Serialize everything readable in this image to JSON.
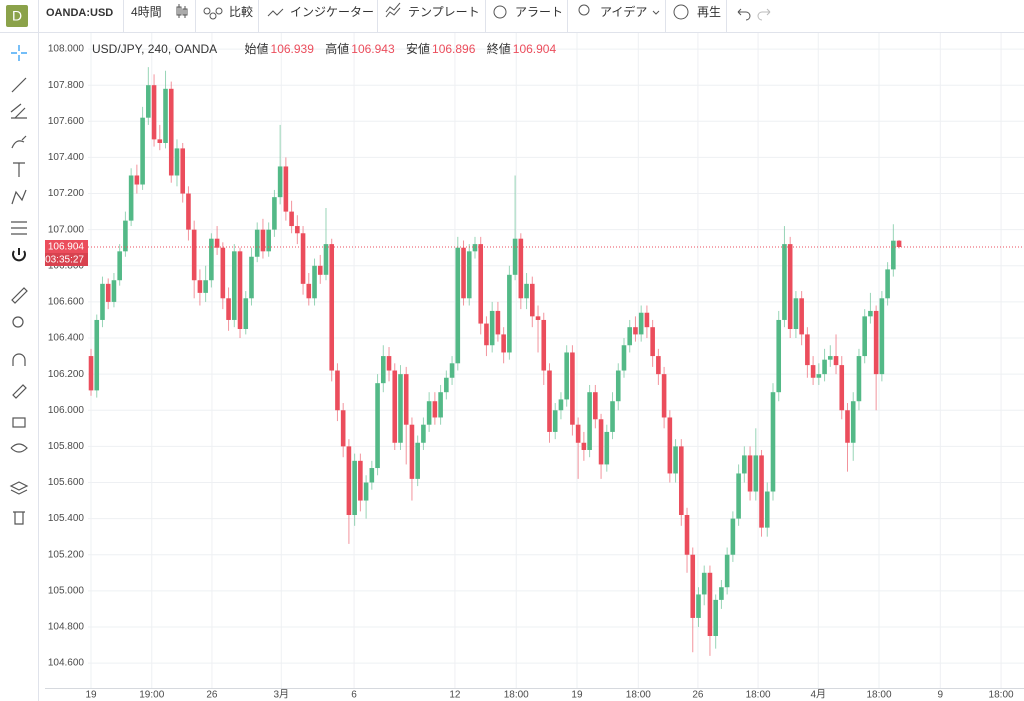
{
  "toolbar": {
    "avatar": "D",
    "symbol": "OANDA:USD",
    "interval": "4時間",
    "compare": "比較",
    "indicators": "インジケーター",
    "templates": "テンプレート",
    "alerts": "アラート",
    "ideas": "アイデア",
    "replay": "再生"
  },
  "chart_data": {
    "type": "candlestick",
    "legend": {
      "symbol": "USD/JPY, 240, OANDA",
      "open": "始値",
      "high": "高値",
      "low": "安値",
      "close": "終値"
    },
    "countdown": "03:35:27",
    "up_color": "#53b987",
    "down_color": "#eb4d5c",
    "grid": true,
    "ylim": [
      104.462,
      108.089
    ],
    "yticks": [
      {
        "value": 104.6,
        "label": "104.600"
      },
      {
        "value": 104.8,
        "label": "104.800"
      },
      {
        "value": 105,
        "label": "105.000"
      },
      {
        "value": 105.2,
        "label": "105.200"
      },
      {
        "value": 105.4,
        "label": "105.400"
      },
      {
        "value": 105.6,
        "label": "105.600"
      },
      {
        "value": 105.8,
        "label": "105.800"
      },
      {
        "value": 106,
        "label": "106.000"
      },
      {
        "value": 106.2,
        "label": "106.200"
      },
      {
        "value": 106.4,
        "label": "106.400"
      },
      {
        "value": 106.6,
        "label": "106.600"
      },
      {
        "value": 106.8,
        "label": "106.800"
      },
      {
        "value": 107,
        "label": "107.000"
      },
      {
        "value": 107.2,
        "label": "107.200"
      },
      {
        "value": 107.4,
        "label": "107.400"
      },
      {
        "value": 107.6,
        "label": "107.600"
      },
      {
        "value": 107.8,
        "label": "107.800"
      },
      {
        "value": 108,
        "label": "108.000"
      }
    ],
    "xlim": [
      -8.03,
      162.8
    ],
    "xticks": [
      {
        "value": 0,
        "label": "19"
      },
      {
        "value": 10.6,
        "label": "19:00"
      },
      {
        "value": 21.1,
        "label": "26"
      },
      {
        "value": 33.2,
        "label": "3月"
      },
      {
        "value": 45.9,
        "label": "6"
      },
      {
        "value": 63.5,
        "label": "12"
      },
      {
        "value": 74.2,
        "label": "18:00"
      },
      {
        "value": 84.8,
        "label": "19"
      },
      {
        "value": 95.5,
        "label": "18:00"
      },
      {
        "value": 105.9,
        "label": "26"
      },
      {
        "value": 116.4,
        "label": "18:00"
      },
      {
        "value": 126.9,
        "label": "4月"
      },
      {
        "value": 137.5,
        "label": "18:00"
      },
      {
        "value": 148.2,
        "label": "9"
      },
      {
        "value": 158.8,
        "label": "18:00"
      }
    ],
    "ohlc": [
      [
        106.3,
        106.34,
        106.08,
        106.11
      ],
      [
        106.11,
        106.53,
        106.07,
        106.5
      ],
      [
        106.5,
        106.74,
        106.46,
        106.7
      ],
      [
        106.7,
        106.73,
        106.56,
        106.6
      ],
      [
        106.6,
        106.76,
        106.57,
        106.72
      ],
      [
        106.72,
        106.92,
        106.69,
        106.88
      ],
      [
        106.88,
        107.1,
        106.85,
        107.05
      ],
      [
        107.05,
        107.34,
        107.02,
        107.3
      ],
      [
        107.3,
        107.36,
        107.2,
        107.25
      ],
      [
        107.25,
        107.68,
        107.22,
        107.62
      ],
      [
        107.62,
        107.9,
        107.58,
        107.8
      ],
      [
        107.8,
        107.86,
        107.46,
        107.5
      ],
      [
        107.5,
        107.58,
        107.44,
        107.48
      ],
      [
        107.48,
        107.88,
        107.45,
        107.78
      ],
      [
        107.78,
        107.82,
        107.26,
        107.3
      ],
      [
        107.3,
        107.5,
        107.24,
        107.45
      ],
      [
        107.45,
        107.48,
        107.15,
        107.2
      ],
      [
        107.2,
        107.24,
        106.94,
        107.0
      ],
      [
        107.0,
        107.05,
        106.62,
        106.72
      ],
      [
        106.72,
        106.78,
        106.58,
        106.65
      ],
      [
        106.65,
        106.8,
        106.6,
        106.72
      ],
      [
        106.72,
        106.98,
        106.68,
        106.95
      ],
      [
        106.95,
        107.02,
        106.86,
        106.9
      ],
      [
        106.9,
        106.93,
        106.56,
        106.62
      ],
      [
        106.62,
        106.68,
        106.44,
        106.5
      ],
      [
        106.5,
        106.92,
        106.46,
        106.88
      ],
      [
        106.88,
        106.9,
        106.4,
        106.45
      ],
      [
        106.45,
        106.66,
        106.42,
        106.62
      ],
      [
        106.62,
        106.9,
        106.58,
        106.85
      ],
      [
        106.85,
        107.04,
        106.82,
        107.0
      ],
      [
        107.0,
        107.06,
        106.84,
        106.88
      ],
      [
        106.88,
        107.04,
        106.85,
        107.0
      ],
      [
        107.0,
        107.22,
        106.96,
        107.18
      ],
      [
        107.18,
        107.58,
        107.14,
        107.35
      ],
      [
        107.35,
        107.4,
        107.05,
        107.1
      ],
      [
        107.1,
        107.16,
        106.98,
        107.02
      ],
      [
        107.02,
        107.08,
        106.92,
        106.98
      ],
      [
        106.98,
        107.02,
        106.64,
        106.7
      ],
      [
        106.7,
        106.76,
        106.58,
        106.62
      ],
      [
        106.62,
        106.84,
        106.58,
        106.8
      ],
      [
        106.8,
        106.86,
        106.7,
        106.75
      ],
      [
        106.75,
        107.12,
        106.72,
        106.92
      ],
      [
        106.92,
        106.95,
        106.16,
        106.22
      ],
      [
        106.22,
        106.26,
        105.94,
        106.0
      ],
      [
        106.0,
        106.04,
        105.74,
        105.8
      ],
      [
        105.8,
        105.84,
        105.26,
        105.42
      ],
      [
        105.42,
        105.76,
        105.36,
        105.72
      ],
      [
        105.72,
        105.76,
        105.44,
        105.5
      ],
      [
        105.5,
        105.64,
        105.4,
        105.6
      ],
      [
        105.6,
        105.72,
        105.56,
        105.68
      ],
      [
        105.68,
        106.2,
        105.64,
        106.15
      ],
      [
        106.15,
        106.36,
        106.1,
        106.3
      ],
      [
        106.3,
        106.35,
        106.16,
        106.22
      ],
      [
        106.22,
        106.26,
        105.78,
        105.82
      ],
      [
        105.82,
        106.25,
        105.78,
        106.2
      ],
      [
        106.2,
        106.24,
        105.7,
        105.92
      ],
      [
        105.92,
        105.96,
        105.5,
        105.62
      ],
      [
        105.62,
        105.86,
        105.58,
        105.82
      ],
      [
        105.82,
        105.96,
        105.78,
        105.92
      ],
      [
        105.92,
        106.1,
        105.88,
        106.05
      ],
      [
        106.05,
        106.1,
        105.92,
        105.96
      ],
      [
        105.96,
        106.14,
        105.92,
        106.1
      ],
      [
        106.1,
        106.22,
        106.06,
        106.18
      ],
      [
        106.18,
        106.3,
        106.14,
        106.26
      ],
      [
        106.26,
        106.96,
        106.22,
        106.9
      ],
      [
        106.9,
        106.94,
        106.58,
        106.62
      ],
      [
        106.62,
        106.92,
        106.58,
        106.88
      ],
      [
        106.88,
        106.96,
        106.84,
        106.92
      ],
      [
        106.92,
        106.96,
        106.42,
        106.48
      ],
      [
        106.48,
        106.52,
        106.3,
        106.36
      ],
      [
        106.36,
        106.6,
        106.32,
        106.55
      ],
      [
        106.55,
        106.6,
        106.38,
        106.42
      ],
      [
        106.42,
        106.46,
        106.26,
        106.32
      ],
      [
        106.32,
        106.8,
        106.28,
        106.75
      ],
      [
        106.75,
        107.3,
        106.72,
        106.95
      ],
      [
        106.95,
        106.98,
        106.56,
        106.62
      ],
      [
        106.62,
        106.76,
        106.56,
        106.7
      ],
      [
        106.7,
        106.74,
        106.46,
        106.52
      ],
      [
        106.52,
        106.58,
        106.32,
        106.5
      ],
      [
        106.5,
        106.54,
        106.14,
        106.22
      ],
      [
        106.22,
        106.26,
        105.82,
        105.88
      ],
      [
        105.88,
        106.04,
        105.84,
        106.0
      ],
      [
        106.0,
        106.1,
        105.95,
        106.06
      ],
      [
        106.06,
        106.36,
        106.02,
        106.32
      ],
      [
        106.32,
        106.36,
        105.86,
        105.92
      ],
      [
        105.92,
        105.96,
        105.62,
        105.82
      ],
      [
        105.82,
        105.88,
        105.72,
        105.78
      ],
      [
        105.78,
        106.14,
        105.74,
        106.1
      ],
      [
        106.1,
        106.14,
        105.9,
        105.95
      ],
      [
        105.95,
        105.98,
        105.62,
        105.7
      ],
      [
        105.7,
        105.92,
        105.66,
        105.88
      ],
      [
        105.88,
        106.1,
        105.84,
        106.05
      ],
      [
        106.05,
        106.26,
        106.0,
        106.22
      ],
      [
        106.22,
        106.4,
        106.18,
        106.36
      ],
      [
        106.36,
        106.5,
        106.32,
        106.46
      ],
      [
        106.46,
        106.52,
        106.38,
        106.42
      ],
      [
        106.42,
        106.58,
        106.38,
        106.54
      ],
      [
        106.54,
        106.58,
        106.4,
        106.46
      ],
      [
        106.46,
        106.5,
        106.24,
        106.3
      ],
      [
        106.3,
        106.34,
        106.14,
        106.2
      ],
      [
        106.2,
        106.24,
        105.9,
        105.96
      ],
      [
        105.96,
        106.0,
        105.6,
        105.65
      ],
      [
        105.65,
        105.84,
        105.6,
        105.8
      ],
      [
        105.8,
        105.84,
        105.36,
        105.42
      ],
      [
        105.42,
        105.46,
        105.1,
        105.2
      ],
      [
        105.2,
        105.24,
        104.66,
        104.85
      ],
      [
        104.85,
        105.02,
        104.8,
        104.98
      ],
      [
        104.98,
        105.14,
        104.92,
        105.1
      ],
      [
        105.1,
        105.14,
        104.64,
        104.75
      ],
      [
        104.75,
        104.98,
        104.68,
        104.95
      ],
      [
        104.95,
        105.06,
        104.9,
        105.02
      ],
      [
        105.02,
        105.24,
        104.98,
        105.2
      ],
      [
        105.2,
        105.44,
        105.16,
        105.4
      ],
      [
        105.4,
        105.7,
        105.36,
        105.65
      ],
      [
        105.65,
        105.8,
        105.6,
        105.75
      ],
      [
        105.75,
        105.8,
        105.5,
        105.55
      ],
      [
        105.55,
        105.9,
        105.5,
        105.75
      ],
      [
        105.75,
        105.78,
        105.3,
        105.35
      ],
      [
        105.35,
        105.6,
        105.3,
        105.55
      ],
      [
        105.55,
        106.15,
        105.5,
        106.1
      ],
      [
        106.1,
        106.55,
        106.05,
        106.5
      ],
      [
        106.5,
        107.02,
        106.46,
        106.92
      ],
      [
        106.92,
        106.96,
        106.4,
        106.45
      ],
      [
        106.45,
        106.66,
        106.4,
        106.62
      ],
      [
        106.62,
        106.66,
        106.36,
        106.42
      ],
      [
        106.42,
        106.46,
        106.18,
        106.25
      ],
      [
        106.25,
        106.3,
        106.14,
        106.18
      ],
      [
        106.18,
        106.26,
        106.14,
        106.2
      ],
      [
        106.2,
        106.34,
        106.16,
        106.28
      ],
      [
        106.28,
        106.36,
        106.24,
        106.3
      ],
      [
        106.3,
        106.42,
        106.2,
        106.25
      ],
      [
        106.25,
        106.3,
        105.95,
        106.0
      ],
      [
        106.0,
        106.04,
        105.66,
        105.82
      ],
      [
        105.82,
        106.1,
        105.72,
        106.05
      ],
      [
        106.05,
        106.34,
        106.0,
        106.3
      ],
      [
        106.3,
        106.56,
        106.26,
        106.52
      ],
      [
        106.52,
        106.65,
        106.48,
        106.55
      ],
      [
        106.55,
        106.58,
        106.0,
        106.2
      ],
      [
        106.2,
        106.66,
        106.16,
        106.62
      ],
      [
        106.62,
        106.82,
        106.58,
        106.78
      ],
      [
        106.78,
        107.03,
        106.74,
        106.939
      ],
      [
        106.939,
        106.943,
        106.896,
        106.904
      ]
    ]
  }
}
